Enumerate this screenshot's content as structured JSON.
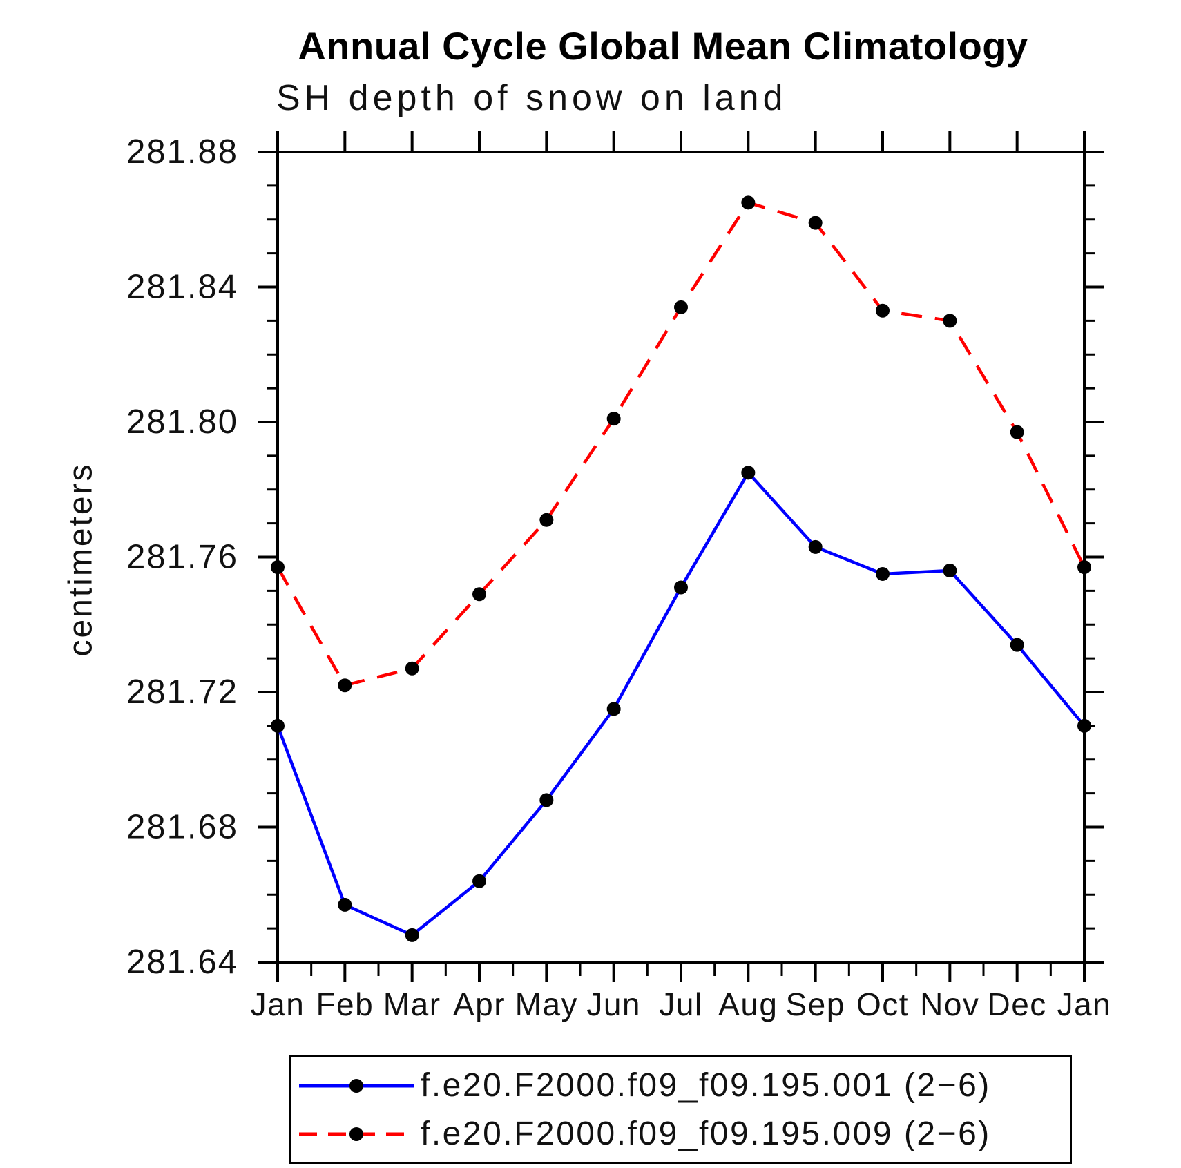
{
  "page": {
    "title": "Annual Cycle Global Mean Climatology",
    "subtitle": "SH depth of snow on land"
  },
  "chart_data": {
    "type": "line",
    "title": "Annual Cycle Global Mean Climatology",
    "subtitle": "SH depth of snow on land",
    "xlabel": "",
    "ylabel": "centimeters",
    "categories": [
      "Jan",
      "Feb",
      "Mar",
      "Apr",
      "May",
      "Jun",
      "Jul",
      "Aug",
      "Sep",
      "Oct",
      "Nov",
      "Dec",
      "Jan"
    ],
    "ylim": [
      281.64,
      281.88
    ],
    "ytick_labels": [
      "281.64",
      "281.68",
      "281.72",
      "281.76",
      "281.80",
      "281.84",
      "281.88"
    ],
    "ytick_step": 0.04,
    "ytick_minor_step": 0.01,
    "grid": false,
    "legend_position": "bottom",
    "axis_color": "#000000",
    "marker_color": "#000000",
    "series": [
      {
        "name": "f.e20.F2000.f09_f09.195.001 (2−6)",
        "color": "#0000ff",
        "style": "solid",
        "marker": "circle",
        "values": [
          281.71,
          281.657,
          281.648,
          281.664,
          281.688,
          281.715,
          281.751,
          281.785,
          281.763,
          281.755,
          281.756,
          281.734,
          281.71
        ]
      },
      {
        "name": "f.e20.F2000.f09_f09.195.009 (2−6)",
        "color": "#ff0000",
        "style": "dashed",
        "marker": "circle",
        "values": [
          281.757,
          281.722,
          281.727,
          281.749,
          281.771,
          281.801,
          281.834,
          281.865,
          281.859,
          281.833,
          281.83,
          281.797,
          281.757
        ]
      }
    ]
  }
}
